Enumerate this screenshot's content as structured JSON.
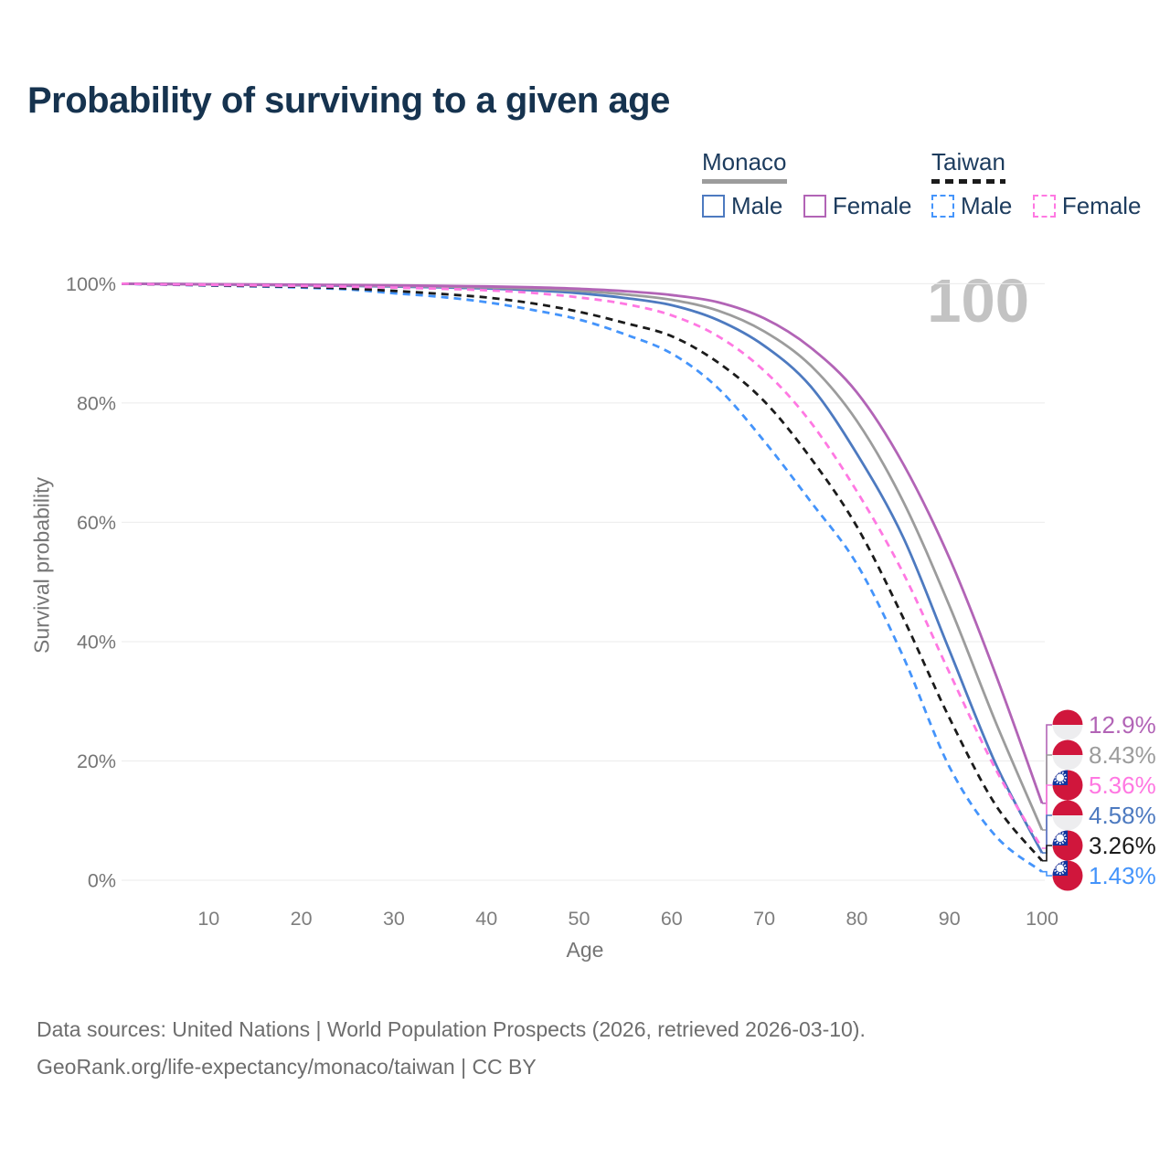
{
  "watermark": "100",
  "legend": {
    "groups": [
      {
        "id": "monaco",
        "label": "Monaco",
        "items": [
          {
            "label": "Male"
          },
          {
            "label": "Female"
          }
        ]
      },
      {
        "id": "taiwan",
        "label": "Taiwan",
        "items": [
          {
            "label": "Male"
          },
          {
            "label": "Female"
          }
        ]
      }
    ]
  },
  "chart_data": {
    "type": "line",
    "title": "Probability of surviving to a given age",
    "xlabel": "Age",
    "ylabel": "Survival probability",
    "xlim": [
      0,
      100
    ],
    "ylim": [
      0,
      100
    ],
    "grid": "horizontal",
    "legend_position": "top-right",
    "x_ticks": [
      10,
      20,
      30,
      40,
      50,
      60,
      70,
      80,
      90,
      100
    ],
    "y_ticks": [
      {
        "value": 0,
        "label": "0%"
      },
      {
        "value": 20,
        "label": "20%"
      },
      {
        "value": 40,
        "label": "40%"
      },
      {
        "value": 60,
        "label": "60%"
      },
      {
        "value": 80,
        "label": "80%"
      },
      {
        "value": 100,
        "label": "100%"
      }
    ],
    "x": [
      0,
      5,
      10,
      15,
      20,
      25,
      30,
      35,
      40,
      45,
      50,
      55,
      60,
      65,
      70,
      75,
      80,
      85,
      90,
      95,
      100
    ],
    "series": [
      {
        "id": "monaco_male",
        "name": "Monaco Male",
        "country": "Monaco",
        "sex": "Male",
        "color": "#4d7ac0",
        "dash": false,
        "flag": "monaco",
        "end_label": "4.58%",
        "values": [
          100,
          99.95,
          99.9,
          99.82,
          99.74,
          99.64,
          99.52,
          99.38,
          99.2,
          98.9,
          98.4,
          97.6,
          96.4,
          93.9,
          89.6,
          82.8,
          71.5,
          57.5,
          38.5,
          19.5,
          4.58
        ]
      },
      {
        "id": "monaco_all",
        "name": "Monaco",
        "country": "Monaco",
        "sex": "Both",
        "color": "#9c9c9c",
        "dash": false,
        "flag": "monaco",
        "end_label": "8.43%",
        "values": [
          100,
          99.95,
          99.9,
          99.85,
          99.8,
          99.72,
          99.63,
          99.52,
          99.38,
          99.15,
          98.8,
          98.2,
          97.3,
          95.5,
          92.0,
          86.3,
          77.0,
          63.5,
          46.0,
          26.5,
          8.43
        ]
      },
      {
        "id": "monaco_female",
        "name": "Monaco Female",
        "country": "Monaco",
        "sex": "Female",
        "color": "#b264b6",
        "dash": false,
        "flag": "monaco",
        "end_label": "12.9%",
        "values": [
          100,
          99.96,
          99.92,
          99.88,
          99.84,
          99.79,
          99.73,
          99.65,
          99.55,
          99.4,
          99.15,
          98.75,
          98.1,
          96.9,
          94.2,
          89.3,
          81.8,
          69.8,
          54.0,
          34.5,
          12.9
        ]
      },
      {
        "id": "taiwan_male",
        "name": "Taiwan Male",
        "country": "Taiwan",
        "sex": "Male",
        "color": "#4494fb",
        "dash": true,
        "flag": "taiwan",
        "end_label": "1.43%",
        "values": [
          100,
          99.85,
          99.7,
          99.55,
          99.35,
          99.05,
          98.4,
          97.8,
          96.9,
          95.6,
          94.0,
          91.5,
          88.3,
          82.5,
          73.6,
          63.5,
          53.0,
          37.5,
          19.0,
          7.4,
          1.43
        ]
      },
      {
        "id": "taiwan_all",
        "name": "Taiwan",
        "country": "Taiwan",
        "sex": "Both",
        "color": "#1b1b1b",
        "dash": true,
        "flag": "taiwan",
        "end_label": "3.26%",
        "values": [
          100,
          99.88,
          99.75,
          99.62,
          99.48,
          99.2,
          98.8,
          98.3,
          97.7,
          96.7,
          95.3,
          93.4,
          91.2,
          86.8,
          80.3,
          70.8,
          59.3,
          44.0,
          27.2,
          12.6,
          3.26
        ]
      },
      {
        "id": "taiwan_female",
        "name": "Taiwan Female",
        "country": "Taiwan",
        "sex": "Female",
        "color": "#ff78e2",
        "dash": true,
        "flag": "taiwan",
        "end_label": "5.36%",
        "values": [
          100,
          99.9,
          99.82,
          99.72,
          99.62,
          99.5,
          99.35,
          99.15,
          98.9,
          98.45,
          97.7,
          96.6,
          94.7,
          91.2,
          85.4,
          76.8,
          65.2,
          51.5,
          34.8,
          18.6,
          5.36
        ]
      }
    ],
    "end_labels": [
      {
        "series": 2
      },
      {
        "series": 1
      },
      {
        "series": 5
      },
      {
        "series": 0
      },
      {
        "series": 4
      },
      {
        "series": 3
      }
    ]
  },
  "footer": {
    "line1": "Data sources: United Nations | World Population Prospects (2026, retrieved 2026-03-10).",
    "line2": "GeoRank.org/life-expectancy/monaco/taiwan | CC BY"
  }
}
